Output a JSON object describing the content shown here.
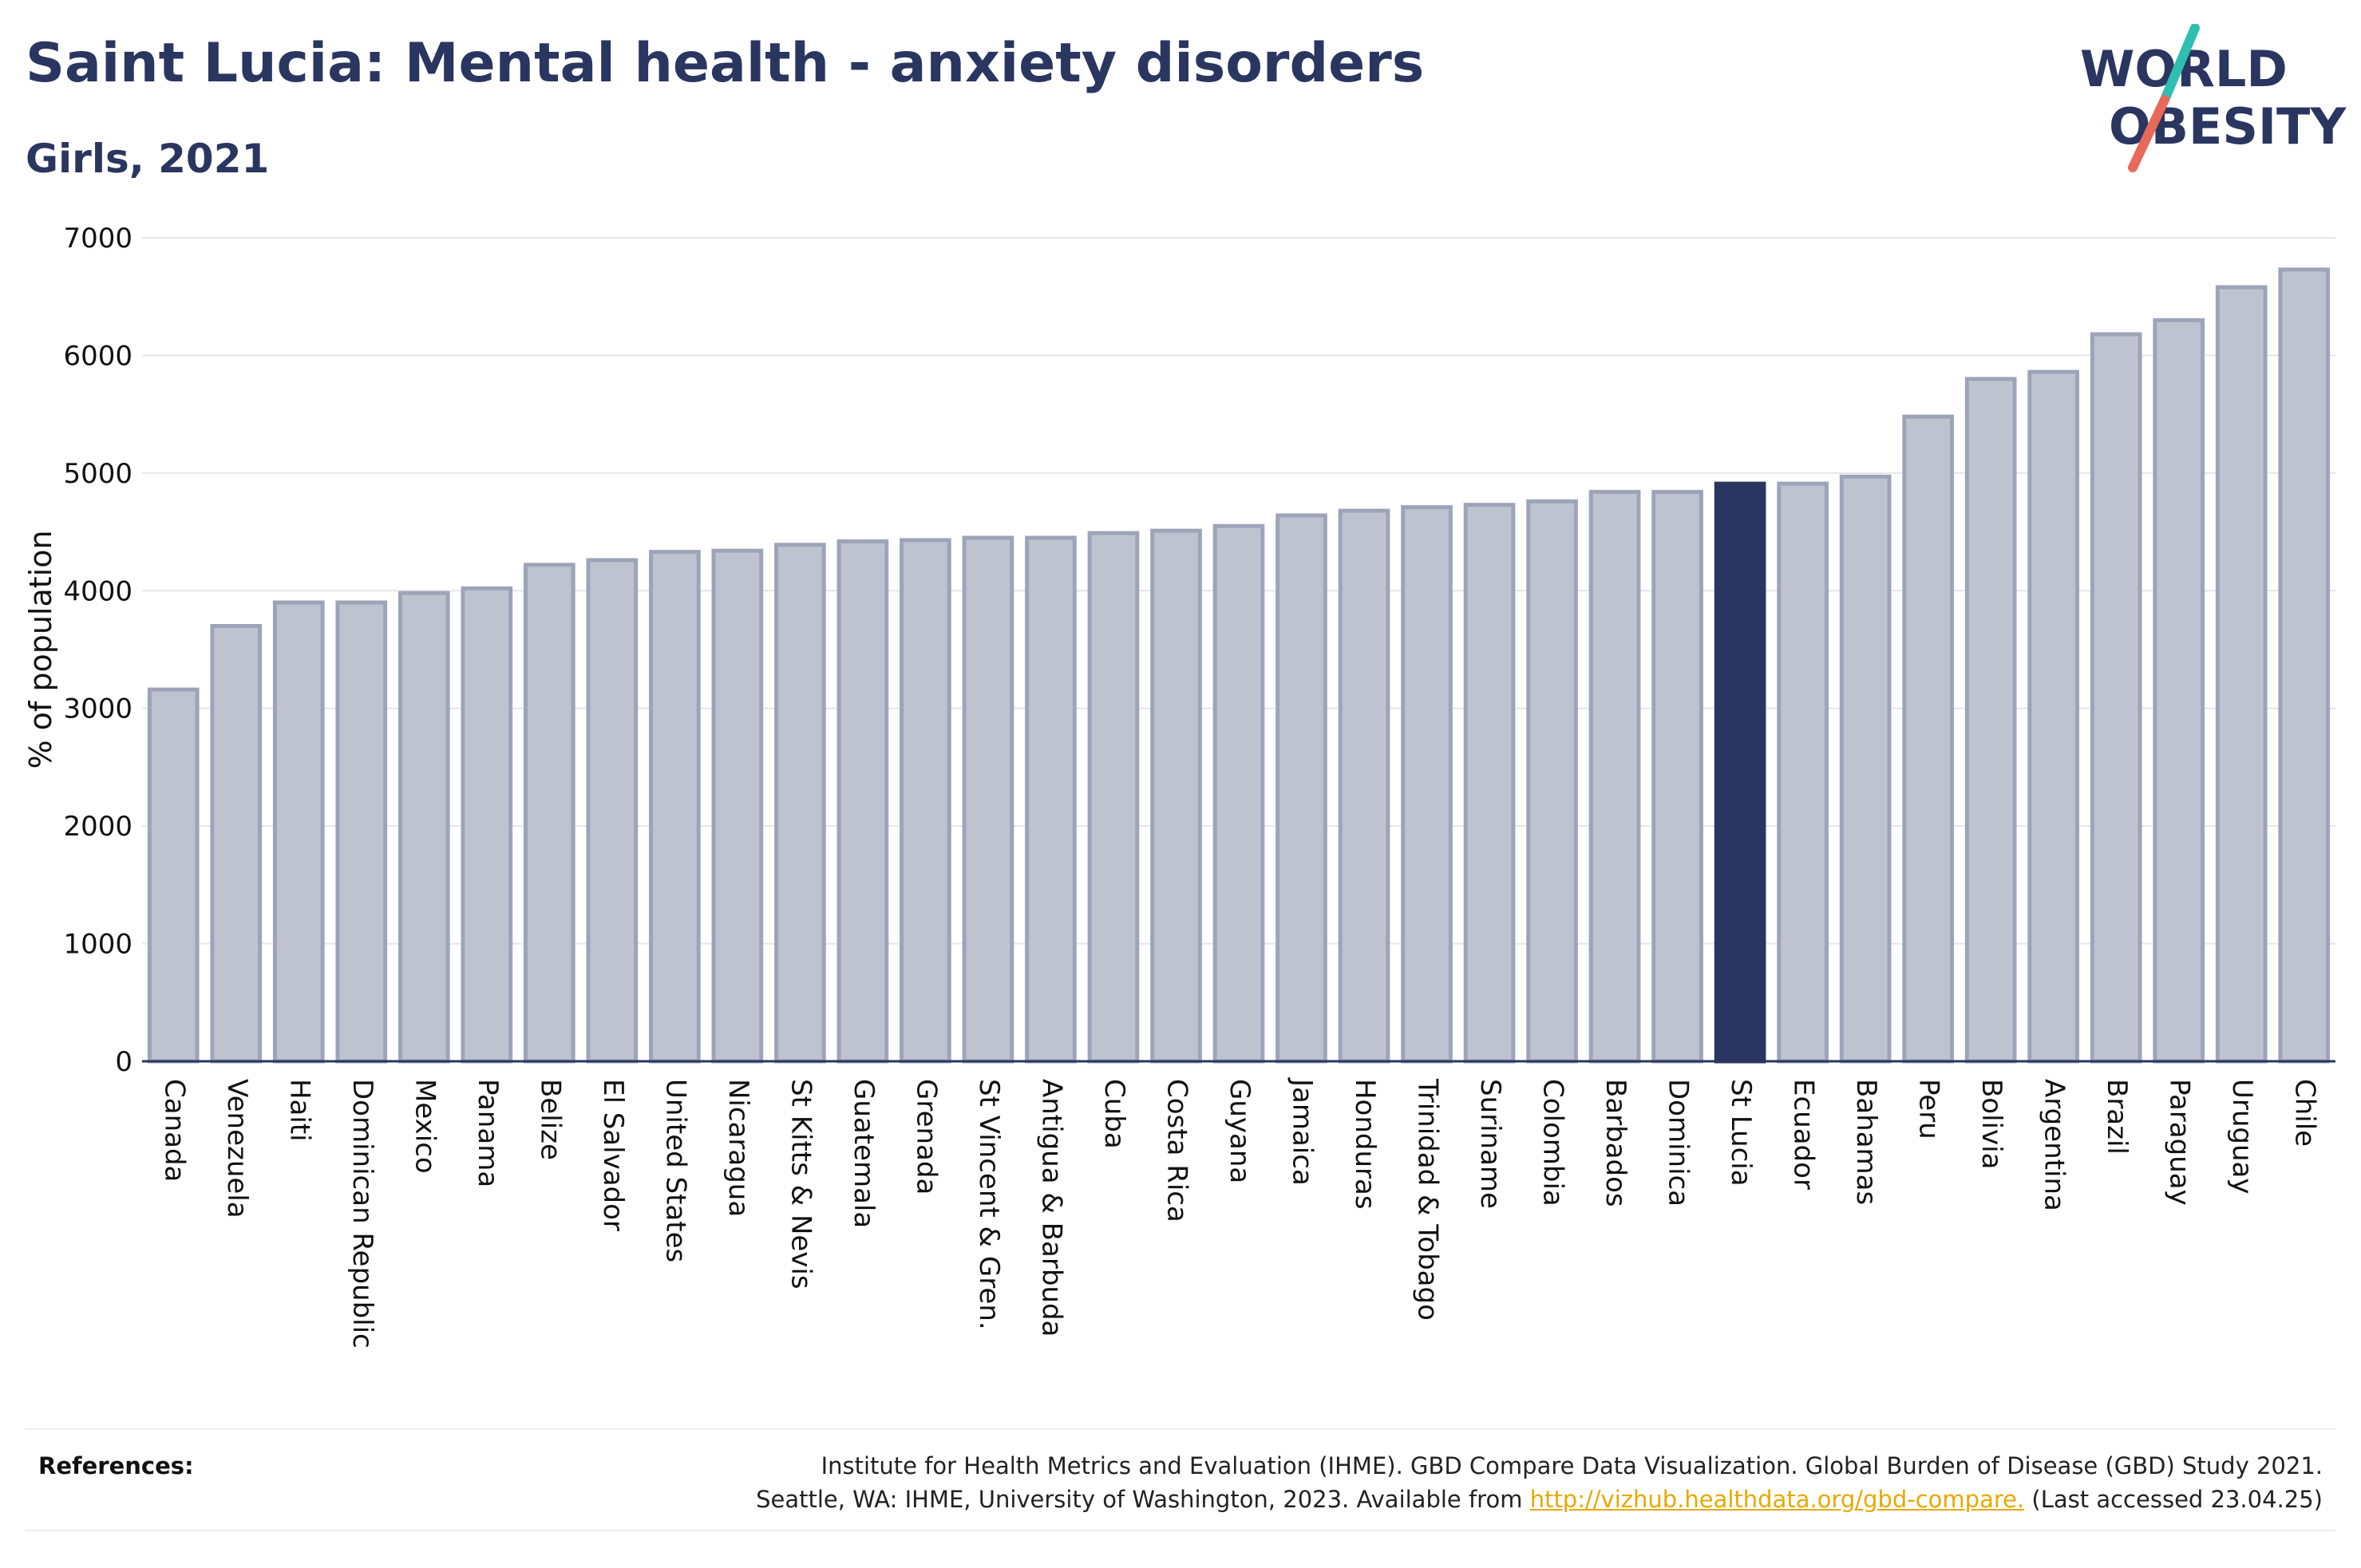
{
  "header": {
    "title": "Saint Lucia: Mental health - anxiety disorders",
    "subtitle": "Girls, 2021"
  },
  "logo": {
    "line1": "WORLD",
    "line2": "OBESITY",
    "icon": "world-obesity-logo"
  },
  "chart_data": {
    "type": "bar",
    "title": "Saint Lucia: Mental health - anxiety disorders",
    "subtitle": "Girls, 2021",
    "ylabel": "% of population",
    "xlabel": "",
    "ylim": [
      0,
      7000
    ],
    "yticks": [
      0,
      1000,
      2000,
      3000,
      4000,
      5000,
      6000,
      7000
    ],
    "grid": true,
    "highlight": "St Lucia",
    "colors": {
      "bar": "#bfc3d0",
      "bar_border": "#9ea4b8",
      "highlight": "#2a3660"
    },
    "categories": [
      "Canada",
      "Venezuela",
      "Haiti",
      "Dominican Republic",
      "Mexico",
      "Panama",
      "Belize",
      "El Salvador",
      "United States",
      "Nicaragua",
      "St Kitts & Nevis",
      "Guatemala",
      "Grenada",
      "St Vincent & Gren.",
      "Antigua & Barbuda",
      "Cuba",
      "Costa Rica",
      "Guyana",
      "Jamaica",
      "Honduras",
      "Trinidad & Tobago",
      "Suriname",
      "Colombia",
      "Barbados",
      "Dominica",
      "St Lucia",
      "Ecuador",
      "Bahamas",
      "Peru",
      "Bolivia",
      "Argentina",
      "Brazil",
      "Paraguay",
      "Uruguay",
      "Chile"
    ],
    "values": [
      3160,
      3700,
      3900,
      3900,
      3980,
      4020,
      4220,
      4260,
      4330,
      4340,
      4390,
      4420,
      4430,
      4450,
      4450,
      4490,
      4510,
      4550,
      4640,
      4680,
      4710,
      4730,
      4760,
      4840,
      4840,
      4910,
      4910,
      4970,
      5480,
      5800,
      5860,
      6180,
      6300,
      6580,
      6730
    ]
  },
  "references": {
    "label": "References:",
    "line1": "Institute for Health Metrics and Evaluation (IHME). GBD Compare Data Visualization. Global Burden of Disease (GBD) Study 2021.",
    "line2_pre": "Seattle, WA: IHME, University of Washington, 2023. Available from",
    "link": "http://vizhub.healthdata.org/gbd-compare.",
    "line2_post": "(Last accessed 23.04.25)"
  }
}
